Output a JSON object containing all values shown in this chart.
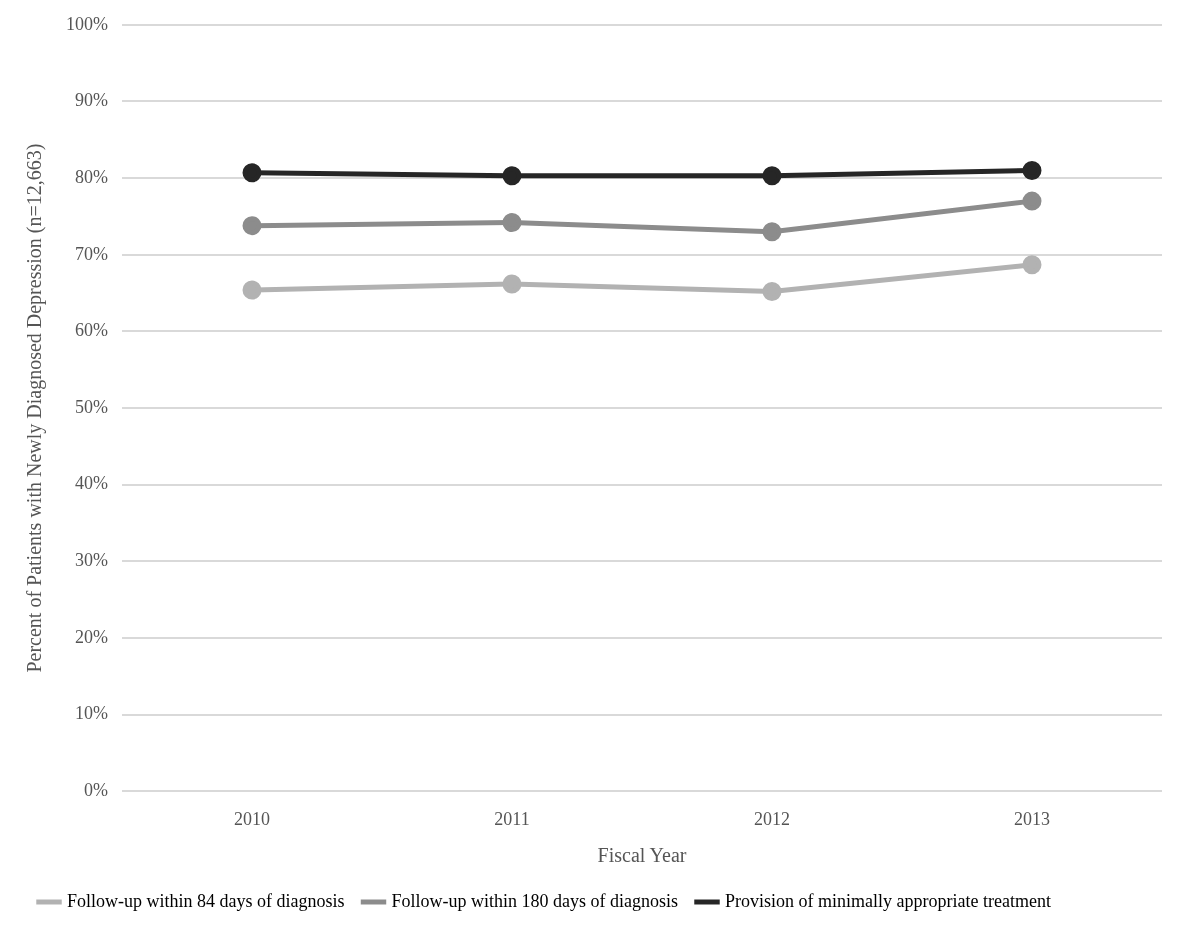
{
  "chart_data": {
    "type": "line",
    "xlabel": "Fiscal Year",
    "ylabel": "Percent of Patients with Newly Diagnosed Depression (n=12,663)",
    "categories": [
      "2010",
      "2011",
      "2012",
      "2013"
    ],
    "series": [
      {
        "name": "Follow-up within 84 days of diagnosis",
        "color": "#b2b2b2",
        "values": [
          65.4,
          66.2,
          65.2,
          68.7
        ]
      },
      {
        "name": "Follow-up within 180 days of diagnosis",
        "color": "#8c8c8c",
        "values": [
          73.8,
          74.2,
          73.0,
          77.0
        ]
      },
      {
        "name": "Provision of minimally appropriate treatment",
        "color": "#262626",
        "values": [
          80.7,
          80.3,
          80.3,
          81.0
        ]
      }
    ],
    "ylim": [
      0,
      100
    ],
    "yticks": [
      {
        "value": 0,
        "label": "0%"
      },
      {
        "value": 10,
        "label": "10%"
      },
      {
        "value": 20,
        "label": "20%"
      },
      {
        "value": 30,
        "label": "30%"
      },
      {
        "value": 40,
        "label": "40%"
      },
      {
        "value": 50,
        "label": "50%"
      },
      {
        "value": 60,
        "label": "60%"
      },
      {
        "value": 70,
        "label": "70%"
      },
      {
        "value": 80,
        "label": "80%"
      },
      {
        "value": 90,
        "label": "90%"
      },
      {
        "value": 100,
        "label": "100%"
      }
    ],
    "grid": "y",
    "legend": "bottom",
    "marker": "circle",
    "line_style": "solid"
  }
}
